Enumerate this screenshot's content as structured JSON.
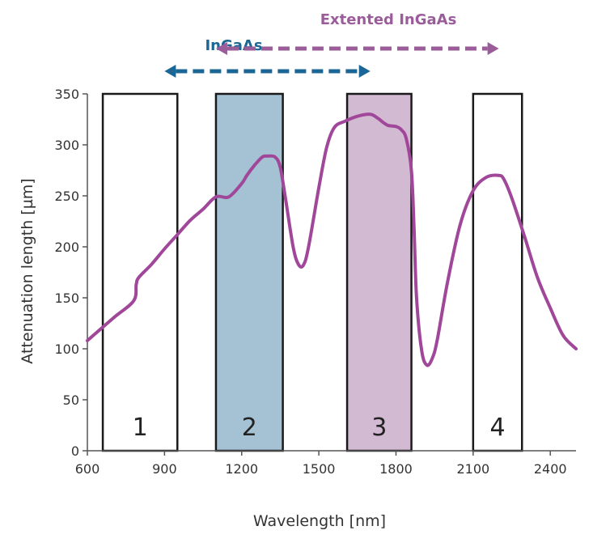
{
  "colors": {
    "curve": "#a0479a",
    "ingaas": "#1b6694",
    "extended_ingaas": "#9a5d9a",
    "band2_fill": "#a5c1d4",
    "band3_fill": "#d2bad3",
    "band_stroke": "#1a1a1a",
    "axis": "#555555"
  },
  "ranges": [
    {
      "name": "ingaas",
      "label": "InGaAs",
      "from": 900,
      "to": 1700,
      "color": "#1b6694"
    },
    {
      "name": "extended-ingaas",
      "label": "Extented InGaAs",
      "from": 1100,
      "to": 2200,
      "color": "#9a5d9a"
    }
  ],
  "chart_data": {
    "type": "line",
    "xlabel": "Wavelength [nm]",
    "ylabel": "Attenuation length [µm]",
    "xlim": [
      600,
      2500
    ],
    "ylim": [
      0,
      350
    ],
    "xticks": [
      600,
      900,
      1200,
      1500,
      1800,
      2100,
      2400
    ],
    "yticks": [
      0,
      50,
      100,
      150,
      200,
      250,
      300,
      350
    ],
    "bands": [
      {
        "label": "1",
        "x0": 660,
        "x1": 950,
        "fill": "none"
      },
      {
        "label": "2",
        "x0": 1100,
        "x1": 1360,
        "fill": "#a5c1d4"
      },
      {
        "label": "3",
        "x0": 1610,
        "x1": 1860,
        "fill": "#d2bad3"
      },
      {
        "label": "4",
        "x0": 2100,
        "x1": 2290,
        "fill": "none"
      }
    ],
    "series": [
      {
        "x": [
          600,
          700,
          780,
          790,
          800,
          850,
          900,
          950,
          1000,
          1050,
          1100,
          1150,
          1200,
          1220,
          1250,
          1280,
          1300,
          1330,
          1350,
          1370,
          1400,
          1420,
          1440,
          1460,
          1500,
          1530,
          1560,
          1600,
          1650,
          1700,
          1730,
          1750,
          1770,
          1800,
          1820,
          1840,
          1860,
          1870,
          1880,
          1900,
          1920,
          1940,
          1960,
          2000,
          2050,
          2100,
          2150,
          2200,
          2220,
          2250,
          2300,
          2350,
          2400,
          2450,
          2500
        ],
        "y": [
          108,
          130,
          147,
          163,
          170,
          183,
          198,
          212,
          226,
          237,
          249,
          249,
          262,
          270,
          280,
          288,
          289,
          288,
          278,
          248,
          200,
          183,
          182,
          200,
          258,
          297,
          317,
          323,
          328,
          330,
          326,
          322,
          319,
          318,
          315,
          306,
          275,
          220,
          150,
          98,
          84,
          90,
          108,
          165,
          222,
          255,
          268,
          270,
          266,
          248,
          210,
          170,
          140,
          113,
          100
        ]
      }
    ]
  }
}
